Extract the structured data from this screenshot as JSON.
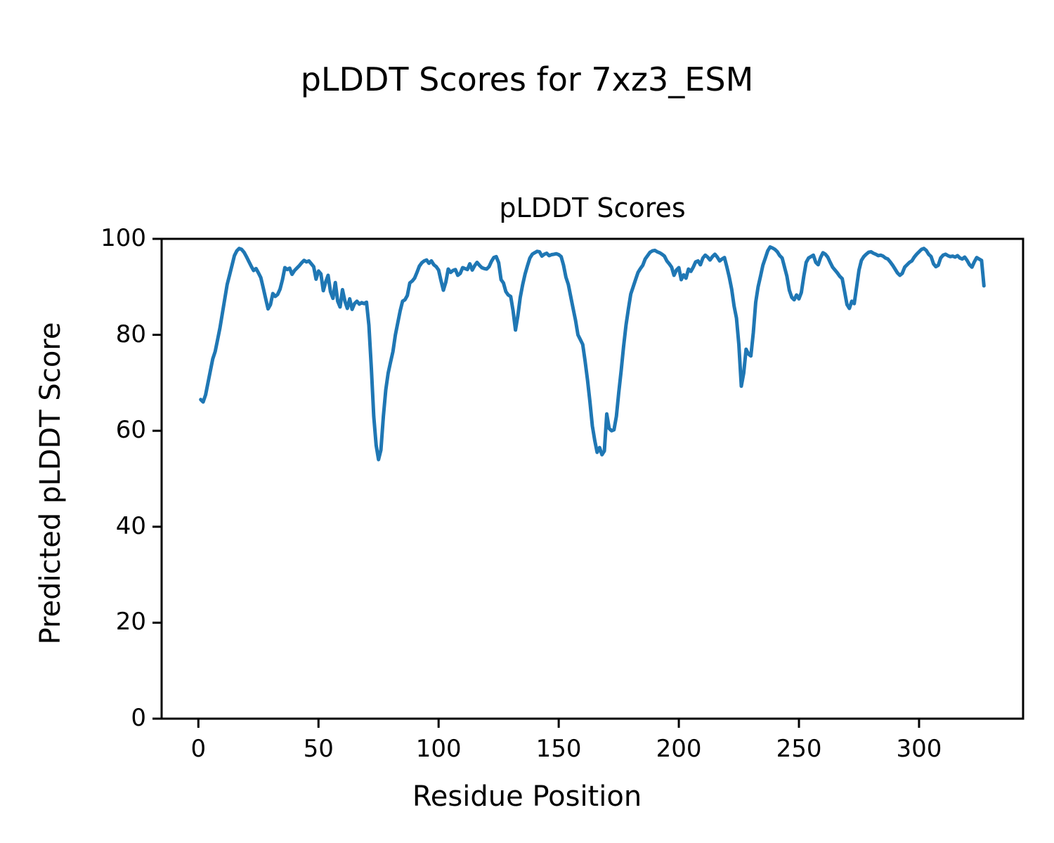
{
  "figure": {
    "suptitle": "pLDDT Scores for 7xz3_ESM"
  },
  "chart_data": {
    "type": "line",
    "title": "pLDDT Scores",
    "xlabel": "Residue Position",
    "ylabel": "Predicted pLDDT Score",
    "xlim": [
      -15.3,
      343.3
    ],
    "ylim": [
      0,
      100
    ],
    "xticks": [
      0,
      50,
      100,
      150,
      200,
      250,
      300
    ],
    "yticks": [
      0,
      20,
      40,
      60,
      80,
      100
    ],
    "grid": false,
    "legend": "none",
    "line_color": "#1f77b4",
    "line_width": 5,
    "spine_color": "#000000",
    "series": [
      {
        "name": "pLDDT",
        "x": [
          1,
          2,
          3,
          4,
          5,
          6,
          7,
          8,
          9,
          10,
          11,
          12,
          13,
          14,
          15,
          16,
          17,
          18,
          19,
          20,
          21,
          22,
          23,
          24,
          25,
          26,
          27,
          28,
          29,
          30,
          31,
          32,
          33,
          34,
          35,
          36,
          37,
          38,
          39,
          40,
          41,
          42,
          43,
          44,
          45,
          46,
          47,
          48,
          49,
          50,
          51,
          52,
          53,
          54,
          55,
          56,
          57,
          58,
          59,
          60,
          61,
          62,
          63,
          64,
          65,
          66,
          67,
          68,
          69,
          70,
          71,
          72,
          73,
          74,
          75,
          76,
          77,
          78,
          79,
          80,
          81,
          82,
          83,
          84,
          85,
          86,
          87,
          88,
          89,
          90,
          91,
          92,
          93,
          94,
          95,
          96,
          97,
          98,
          99,
          100,
          101,
          102,
          103,
          104,
          105,
          106,
          107,
          108,
          109,
          110,
          111,
          112,
          113,
          114,
          115,
          116,
          117,
          118,
          119,
          120,
          121,
          122,
          123,
          124,
          125,
          126,
          127,
          128,
          129,
          130,
          131,
          132,
          133,
          134,
          135,
          136,
          137,
          138,
          139,
          140,
          141,
          142,
          143,
          144,
          145,
          146,
          147,
          148,
          149,
          150,
          151,
          152,
          153,
          154,
          155,
          156,
          157,
          158,
          159,
          160,
          161,
          162,
          163,
          164,
          165,
          166,
          167,
          168,
          169,
          170,
          171,
          172,
          173,
          174,
          175,
          176,
          177,
          178,
          179,
          180,
          181,
          182,
          183,
          184,
          185,
          186,
          187,
          188,
          189,
          190,
          191,
          192,
          193,
          194,
          195,
          196,
          197,
          198,
          199,
          200,
          201,
          202,
          203,
          204,
          205,
          206,
          207,
          208,
          209,
          210,
          211,
          212,
          213,
          214,
          215,
          216,
          217,
          218,
          219,
          220,
          221,
          222,
          223,
          224,
          225,
          226,
          227,
          228,
          229,
          230,
          231,
          232,
          233,
          234,
          235,
          236,
          237,
          238,
          239,
          240,
          241,
          242,
          243,
          244,
          245,
          246,
          247,
          248,
          249,
          250,
          251,
          252,
          253,
          254,
          255,
          256,
          257,
          258,
          259,
          260,
          261,
          262,
          263,
          264,
          265,
          266,
          267,
          268,
          269,
          270,
          271,
          272,
          273,
          274,
          275,
          276,
          277,
          278,
          279,
          280,
          281,
          282,
          283,
          284,
          285,
          286,
          287,
          288,
          289,
          290,
          291,
          292,
          293,
          294,
          295,
          296,
          297,
          298,
          299,
          300,
          301,
          302,
          303,
          304,
          305,
          306,
          307,
          308,
          309,
          310,
          311,
          312,
          313,
          314,
          315,
          316,
          317,
          318,
          319,
          320,
          321,
          322,
          323,
          324,
          325,
          326,
          327
        ],
        "y": [
          66.5,
          66.0,
          67.5,
          70.0,
          72.5,
          75.0,
          76.5,
          79.0,
          81.5,
          84.5,
          87.5,
          90.5,
          92.5,
          94.5,
          96.5,
          97.5,
          98.0,
          97.8,
          97.2,
          96.3,
          95.3,
          94.3,
          93.4,
          93.8,
          92.9,
          91.9,
          89.8,
          87.6,
          85.4,
          86.3,
          88.6,
          88.0,
          88.4,
          89.5,
          91.5,
          94.0,
          93.6,
          93.9,
          92.6,
          93.4,
          93.9,
          94.4,
          95.0,
          95.5,
          95.2,
          95.4,
          94.8,
          94.2,
          91.6,
          93.3,
          92.7,
          89.2,
          91.0,
          92.4,
          89.0,
          87.6,
          90.9,
          87.0,
          85.8,
          89.4,
          87.0,
          85.5,
          87.5,
          85.3,
          86.5,
          87.0,
          86.4,
          86.7,
          86.5,
          86.8,
          82.0,
          73.0,
          63.0,
          57.0,
          54.0,
          56.0,
          63.0,
          68.5,
          72.0,
          74.3,
          76.5,
          80.0,
          82.5,
          85.0,
          87.0,
          87.3,
          88.2,
          90.8,
          91.2,
          91.8,
          93.0,
          94.3,
          95.0,
          95.4,
          95.6,
          94.9,
          95.4,
          94.6,
          94.2,
          93.5,
          91.3,
          89.3,
          91.0,
          93.7,
          93.0,
          93.4,
          93.6,
          92.4,
          92.8,
          94.0,
          93.8,
          93.6,
          94.8,
          93.5,
          94.4,
          95.1,
          94.5,
          94.0,
          93.8,
          93.7,
          94.2,
          95.3,
          96.1,
          96.3,
          95.0,
          91.5,
          90.8,
          89.0,
          88.3,
          88.0,
          85.0,
          81.0,
          84.0,
          87.8,
          90.5,
          92.7,
          94.4,
          96.0,
          96.8,
          97.1,
          97.4,
          97.3,
          96.4,
          96.8,
          97.0,
          96.5,
          96.7,
          96.8,
          96.9,
          96.7,
          96.3,
          94.5,
          92.0,
          90.5,
          88.0,
          85.5,
          83.0,
          80.0,
          79.0,
          78.0,
          74.5,
          70.5,
          66.0,
          61.0,
          58.0,
          55.5,
          56.5,
          55.0,
          55.8,
          63.5,
          60.5,
          60.0,
          60.2,
          63.0,
          68.0,
          72.5,
          77.5,
          82.0,
          85.4,
          88.5,
          90.0,
          91.5,
          93.0,
          93.8,
          94.5,
          95.8,
          96.5,
          97.2,
          97.5,
          97.6,
          97.3,
          97.1,
          96.8,
          96.4,
          95.4,
          94.8,
          94.1,
          92.4,
          93.5,
          94.0,
          91.5,
          92.5,
          91.8,
          93.7,
          93.2,
          94.1,
          95.2,
          95.4,
          94.6,
          96.0,
          96.6,
          96.2,
          95.6,
          96.3,
          96.8,
          96.2,
          95.4,
          95.8,
          96.1,
          94.1,
          92.0,
          89.5,
          86.0,
          83.5,
          78.0,
          69.3,
          72.0,
          77.0,
          76.0,
          75.6,
          80.5,
          86.8,
          90.0,
          92.2,
          94.5,
          96.0,
          97.5,
          98.3,
          98.1,
          97.8,
          97.3,
          96.5,
          96.0,
          94.1,
          92.2,
          89.3,
          87.8,
          87.3,
          88.3,
          87.5,
          88.8,
          92.2,
          95.1,
          96.0,
          96.3,
          96.6,
          95.1,
          94.6,
          96.1,
          97.1,
          96.8,
          96.2,
          95.1,
          94.1,
          93.5,
          92.9,
          92.2,
          91.7,
          89.0,
          86.3,
          85.5,
          87.0,
          86.5,
          90.0,
          93.5,
          95.5,
          96.3,
          96.8,
          97.2,
          97.3,
          97.0,
          96.8,
          96.5,
          96.6,
          96.4,
          96.0,
          95.8,
          95.2,
          94.5,
          93.7,
          92.9,
          92.4,
          92.8,
          94.1,
          94.6,
          95.1,
          95.4,
          96.2,
          96.8,
          97.3,
          97.8,
          98.0,
          97.6,
          96.8,
          96.3,
          94.8,
          94.2,
          94.5,
          96.0,
          96.6,
          96.8,
          96.5,
          96.3,
          96.4,
          96.2,
          96.5,
          96.0,
          95.8,
          96.2,
          95.5,
          94.6,
          94.1,
          95.2,
          96.1,
          95.8,
          95.5,
          90.2
        ]
      }
    ]
  }
}
